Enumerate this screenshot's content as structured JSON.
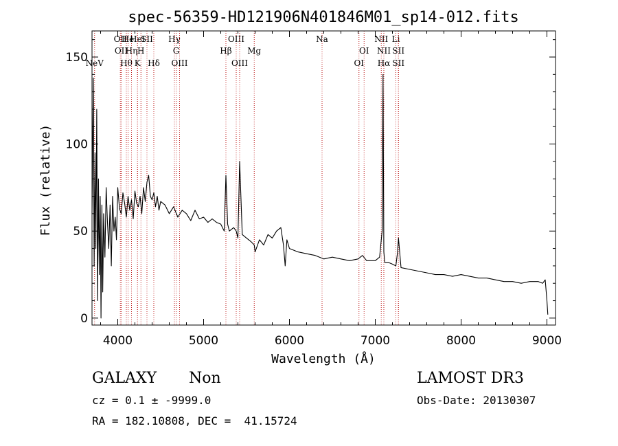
{
  "chart_data": {
    "type": "line",
    "title": "spec-56359-HD121906N401846M01_sp14-012.fits",
    "xlabel": "Wavelength (Å)",
    "ylabel": "Flux (relative)",
    "xlim": [
      3700,
      9100
    ],
    "ylim": [
      -4,
      165
    ],
    "x_ticks": [
      4000,
      5000,
      6000,
      7000,
      8000,
      9000
    ],
    "y_ticks": [
      0,
      50,
      100,
      150
    ],
    "grid": false,
    "series": [
      {
        "x": [
          3700,
          3715,
          3725,
          3735,
          3745,
          3755,
          3765,
          3775,
          3785,
          3795,
          3805,
          3815,
          3825,
          3835,
          3850,
          3865,
          3880,
          3895,
          3910,
          3925,
          3940,
          3955,
          3970,
          3985,
          4000,
          4020,
          4040,
          4060,
          4080,
          4100,
          4120,
          4140,
          4160,
          4180,
          4200,
          4220,
          4240,
          4260,
          4280,
          4300,
          4320,
          4340,
          4360,
          4380,
          4400,
          4420,
          4440,
          4460,
          4480,
          4500,
          4550,
          4600,
          4650,
          4700,
          4750,
          4800,
          4850,
          4900,
          4950,
          5000,
          5050,
          5100,
          5150,
          5200,
          5240,
          5260,
          5280,
          5300,
          5350,
          5380,
          5400,
          5420,
          5450,
          5500,
          5550,
          5590,
          5600,
          5650,
          5700,
          5750,
          5800,
          5850,
          5900,
          5930,
          5950,
          5970,
          6000,
          6050,
          6100,
          6200,
          6300,
          6400,
          6500,
          6600,
          6700,
          6800,
          6850,
          6900,
          7000,
          7050,
          7080,
          7090,
          7100,
          7110,
          7150,
          7200,
          7240,
          7260,
          7270,
          7300,
          7400,
          7500,
          7600,
          7700,
          7800,
          7900,
          8000,
          8100,
          8200,
          8300,
          8400,
          8500,
          8600,
          8700,
          8800,
          8900,
          8950,
          8980,
          9000,
          9010
        ],
        "values": [
          60,
          138,
          30,
          95,
          40,
          120,
          10,
          80,
          25,
          70,
          0,
          65,
          15,
          60,
          35,
          75,
          55,
          40,
          65,
          30,
          70,
          50,
          58,
          45,
          75,
          63,
          60,
          72,
          66,
          58,
          70,
          62,
          68,
          57,
          73,
          66,
          64,
          70,
          60,
          75,
          67,
          78,
          82,
          70,
          68,
          72,
          64,
          70,
          62,
          67,
          65,
          60,
          64,
          58,
          62,
          60,
          56,
          62,
          57,
          58,
          55,
          57,
          55,
          54,
          50,
          82,
          54,
          50,
          52,
          50,
          46,
          90,
          48,
          46,
          44,
          42,
          38,
          45,
          42,
          48,
          46,
          50,
          52,
          42,
          30,
          45,
          40,
          39,
          38,
          37,
          36,
          34,
          35,
          34,
          33,
          34,
          36,
          33,
          33,
          35,
          50,
          140,
          38,
          32,
          32,
          31,
          30,
          38,
          46,
          29,
          28,
          27,
          26,
          25,
          25,
          24,
          25,
          24,
          23,
          23,
          22,
          21,
          21,
          20,
          21,
          21,
          20,
          22,
          10,
          2
        ],
        "line_color": "#000000"
      }
    ],
    "line_markers": [
      {
        "x": 3730,
        "label": "NeV",
        "row": 3
      },
      {
        "x": 4030,
        "label": "OII",
        "row": 1
      },
      {
        "x": 4040,
        "label": "OII",
        "row": 2
      },
      {
        "x": 4100,
        "label": "Hθ",
        "row": 3
      },
      {
        "x": 4120,
        "label": "He",
        "row": 1
      },
      {
        "x": 4160,
        "label": "Hη",
        "row": 2
      },
      {
        "x": 4230,
        "label": "HeI",
        "row": 1
      },
      {
        "x": 4230,
        "label": "K",
        "row": 3
      },
      {
        "x": 4270,
        "label": "H",
        "row": 2
      },
      {
        "x": 4340,
        "label": "SII",
        "row": 1
      },
      {
        "x": 4420,
        "label": "Hδ",
        "row": 3
      },
      {
        "x": 4660,
        "label": "Hγ",
        "row": 1
      },
      {
        "x": 4680,
        "label": "G",
        "row": 2
      },
      {
        "x": 4720,
        "label": "OIII",
        "row": 3
      },
      {
        "x": 5260,
        "label": "Hβ",
        "row": 2
      },
      {
        "x": 5380,
        "label": "OIII",
        "row": 1
      },
      {
        "x": 5420,
        "label": "OIII",
        "row": 3
      },
      {
        "x": 5590,
        "label": "Mg",
        "row": 2
      },
      {
        "x": 6380,
        "label": "Na",
        "row": 1
      },
      {
        "x": 6810,
        "label": "OI",
        "row": 3
      },
      {
        "x": 6870,
        "label": "OI",
        "row": 2
      },
      {
        "x": 7070,
        "label": "NII",
        "row": 1
      },
      {
        "x": 7100,
        "label": "NII",
        "row": 2
      },
      {
        "x": 7100,
        "label": "Hα",
        "row": 3
      },
      {
        "x": 7240,
        "label": "Li",
        "row": 1
      },
      {
        "x": 7270,
        "label": "SII",
        "row": 2
      },
      {
        "x": 7270,
        "label": "SII",
        "row": 3
      }
    ]
  },
  "info": {
    "object_class": "GALAXY",
    "subclass": "Non",
    "survey": "LAMOST DR3",
    "redshift": "cz = 0.1 ± -9999.0",
    "obs_date": "Obs-Date: 20130307",
    "coords": "RA = 182.10808, DEC =  41.15724"
  }
}
